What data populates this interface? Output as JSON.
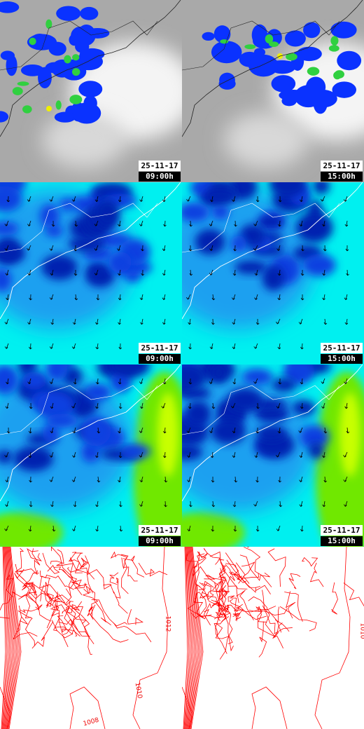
{
  "panels": [
    {
      "date": "25-11-17",
      "time": "09:00h"
    },
    {
      "date": "25-11-17",
      "time": "15:00h"
    },
    {
      "date": "25-11-17",
      "time": "09:00h"
    },
    {
      "date": "25-11-17",
      "time": "15:00h"
    },
    {
      "date": "25-11-17",
      "time": "09:00h"
    },
    {
      "date": "25-11-17",
      "time": "15:00h"
    }
  ],
  "pressure_maps": [
    {
      "contour_labels": [
        "1012",
        "1010",
        "1008"
      ]
    },
    {
      "contour_labels": [
        "1010"
      ]
    }
  ]
}
